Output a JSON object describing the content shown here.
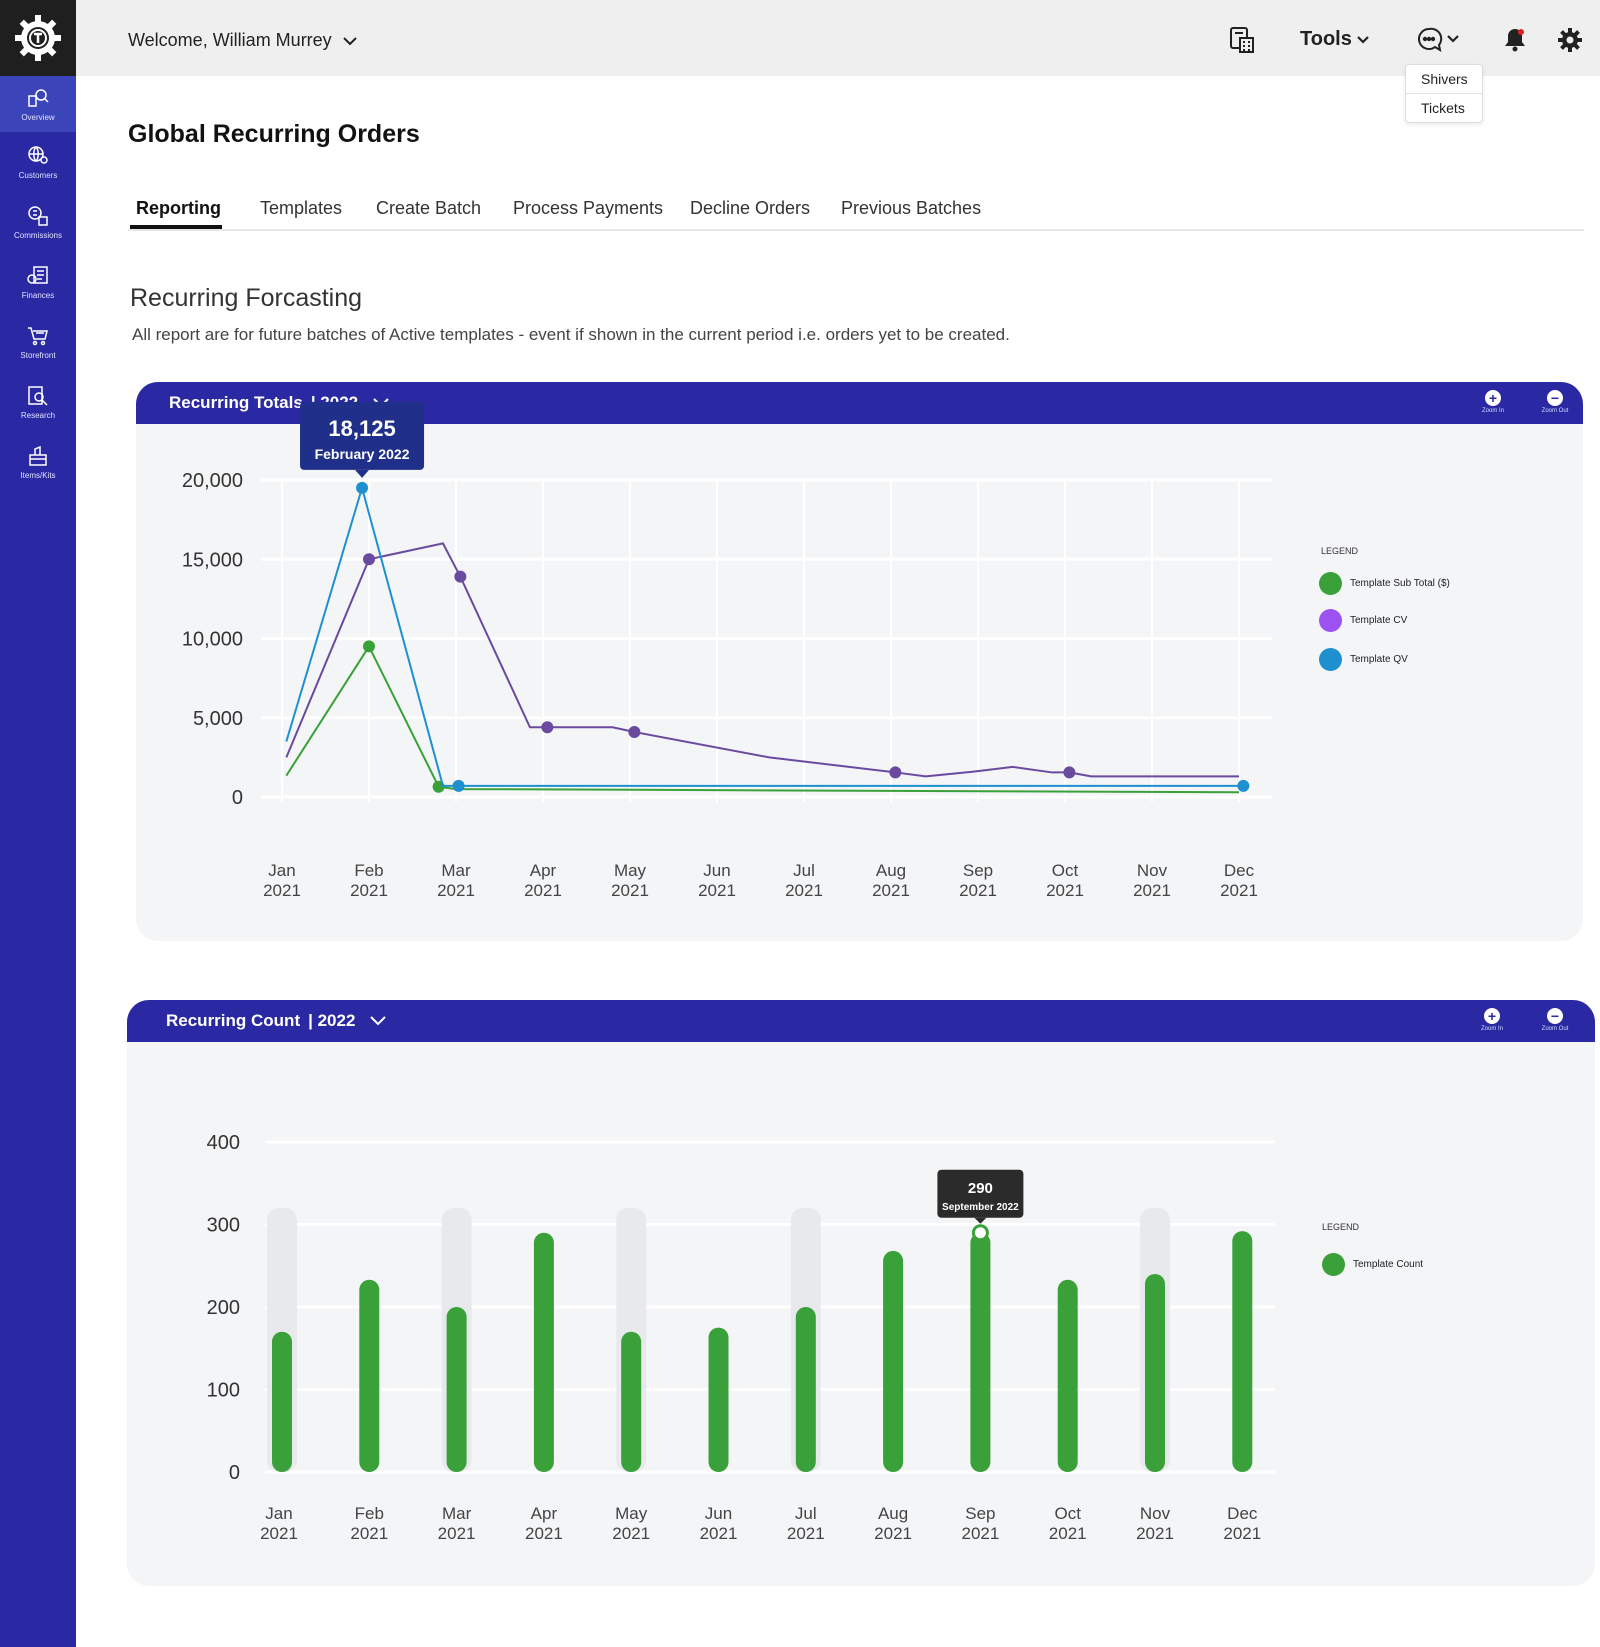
{
  "user": {
    "welcome": "Welcome, William Murrey"
  },
  "topbar": {
    "tools_label": "Tools"
  },
  "support_menu": {
    "items": [
      "Shivers",
      "Tickets"
    ]
  },
  "sidebar": {
    "items": [
      {
        "label": "Overview",
        "icon": "overview-icon"
      },
      {
        "label": "Customers",
        "icon": "customers-icon"
      },
      {
        "label": "Commissions",
        "icon": "commissions-icon"
      },
      {
        "label": "Finances",
        "icon": "finances-icon"
      },
      {
        "label": "Storefront",
        "icon": "storefront-icon"
      },
      {
        "label": "Research",
        "icon": "research-icon"
      },
      {
        "label": "Items/Kits",
        "icon": "items-kits-icon"
      }
    ]
  },
  "page": {
    "title": "Global Recurring Orders"
  },
  "tabs": [
    "Reporting",
    "Templates",
    "Create Batch",
    "Process Payments",
    "Decline Orders",
    "Previous Batches"
  ],
  "section": {
    "title": "Recurring Forcasting",
    "description": "All report are for future batches of Active templates - event if shown in the current period i.e. orders yet to be created."
  },
  "zoom": {
    "in_label": "Zoom In",
    "out_label": "Zoom Out"
  },
  "colors": {
    "brand": "#2a29a3",
    "green": "#3aa039",
    "purple": "#6a4a9e",
    "blue": "#1e90d0"
  },
  "totals_card": {
    "title": "Recurring Totals",
    "year": "| 2022",
    "legend_title": "LEGEND",
    "tooltip": {
      "value": "18,125",
      "label": "February 2022"
    }
  },
  "count_card": {
    "title": "Recurring Count",
    "year": "| 2022",
    "legend_title": "LEGEND",
    "tooltip": {
      "value": "290",
      "label": "September 2022"
    }
  },
  "chart_data": [
    {
      "type": "line",
      "categories": [
        "Jan\n2021",
        "Feb\n2021",
        "Mar\n2021",
        "Apr\n2021",
        "May\n2021",
        "Jun\n2021",
        "Jul\n2021",
        "Aug\n2021",
        "Sep\n2021",
        "Oct\n2021",
        "Nov\n2021",
        "Dec\n2021"
      ],
      "x": [
        0,
        1,
        2,
        3,
        4,
        5,
        6,
        7,
        8,
        9,
        10,
        11
      ],
      "ylim": [
        0,
        20000
      ],
      "yticks": [
        "0",
        "5,000",
        "10,000",
        "15,000",
        "20,000"
      ],
      "yticks_values": [
        0,
        5000,
        10000,
        15000,
        20000
      ],
      "grid": true,
      "legend": "right",
      "series": [
        {
          "name": "Template Sub Total ($)",
          "color": "#3aa039",
          "x": [
            0.05,
            1.0,
            1.8,
            2.0,
            11.0
          ],
          "values": [
            1350,
            9500,
            650,
            500,
            300
          ],
          "markers": [
            [
              1.0,
              9500
            ],
            [
              1.8,
              650
            ]
          ]
        },
        {
          "name": "Template CV",
          "color": "#6a4a9e",
          "x": [
            0.05,
            1.0,
            1.85,
            2.05,
            2.85,
            3.05,
            3.8,
            4.05,
            5.6,
            7.05,
            7.4,
            7.95,
            8.4,
            8.85,
            9.05,
            9.3,
            11.0
          ],
          "values": [
            2500,
            15000,
            16000,
            13900,
            4400,
            4400,
            4400,
            4100,
            2500,
            1550,
            1300,
            1600,
            1900,
            1550,
            1550,
            1300,
            1300
          ],
          "markers": [
            [
              1.0,
              15000
            ],
            [
              2.05,
              13900
            ],
            [
              3.05,
              4400
            ],
            [
              4.05,
              4100
            ],
            [
              7.05,
              1550
            ],
            [
              9.05,
              1550
            ]
          ]
        },
        {
          "name": "Template QV",
          "color": "#1e90d0",
          "x": [
            0.05,
            0.92,
            1.85,
            2.03,
            11.05
          ],
          "values": [
            3500,
            19500,
            700,
            700,
            700
          ],
          "markers": [
            [
              0.92,
              19500
            ],
            [
              2.03,
              700
            ],
            [
              11.05,
              700
            ]
          ]
        }
      ]
    },
    {
      "type": "bar",
      "categories": [
        "Jan\n2021",
        "Feb\n2021",
        "Mar\n2021",
        "Apr\n2021",
        "May\n2021",
        "Jun\n2021",
        "Jul\n2021",
        "Aug\n2021",
        "Sep\n2021",
        "Oct\n2021",
        "Nov\n2021",
        "Dec\n2021"
      ],
      "ylim": [
        0,
        400
      ],
      "yticks": [
        "0",
        "100",
        "200",
        "300",
        "400"
      ],
      "yticks_values": [
        0,
        100,
        200,
        300,
        400
      ],
      "grid": true,
      "legend": "right",
      "series": [
        {
          "name": "Template Count",
          "color": "#3aa039",
          "values": [
            170,
            233,
            200,
            290,
            170,
            175,
            200,
            268,
            290,
            233,
            240,
            292
          ]
        }
      ],
      "background_bars": [
        true,
        false,
        true,
        false,
        true,
        false,
        true,
        false,
        false,
        false,
        true,
        false
      ],
      "background_value": 320
    }
  ]
}
